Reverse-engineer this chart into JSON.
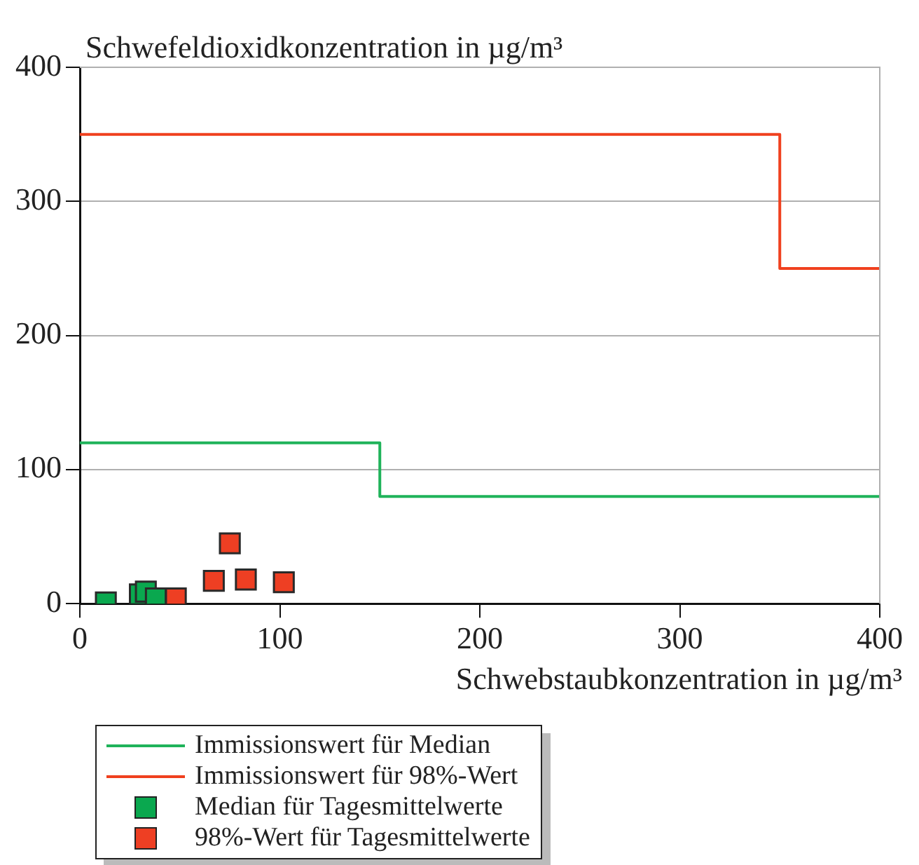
{
  "chart_data": {
    "type": "scatter",
    "xlabel": "Schwebstaubkonzentration in µg/m³",
    "ylabel": "Schwefeldioxidkonzentration in µg/m³",
    "xlim": [
      0,
      400
    ],
    "ylim": [
      0,
      400
    ],
    "xticks": [
      0,
      100,
      200,
      300,
      400
    ],
    "yticks": [
      0,
      100,
      200,
      300,
      400
    ],
    "grid": "y",
    "legend": "bottom",
    "marker": "square",
    "series": [
      {
        "name": "Immissionswert für Median",
        "type": "step",
        "marker": "none",
        "color": "#1fb35a",
        "x": [
          0,
          150,
          400
        ],
        "values": [
          120,
          80,
          80
        ]
      },
      {
        "name": "Immissionswert für 98%-Wert",
        "type": "step",
        "marker": "none",
        "color": "#f0401e",
        "x": [
          0,
          350,
          400
        ],
        "values": [
          350,
          250,
          250
        ]
      },
      {
        "name": "Median für Tagesmittelwerte",
        "color": "#0aa84f",
        "x": [
          13,
          30,
          33,
          38
        ],
        "values": [
          1,
          7,
          9,
          4
        ]
      },
      {
        "name": "98%-Wert für Tagesmittelwerte",
        "color": "#ee3f23",
        "x": [
          48,
          67,
          75,
          83,
          102
        ],
        "values": [
          4,
          17,
          45,
          18,
          16
        ]
      }
    ]
  }
}
